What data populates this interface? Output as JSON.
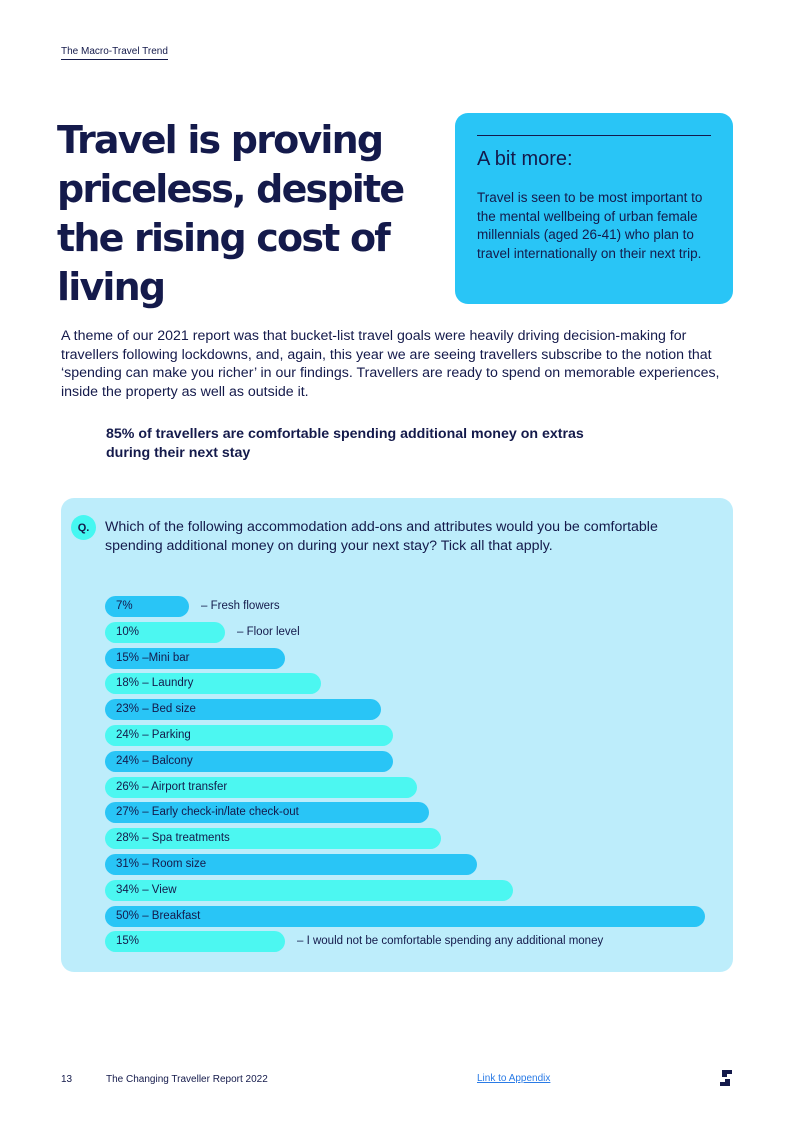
{
  "header": {
    "section_label": "The Macro-Travel Trend"
  },
  "headline": "Travel is proving priceless, despite the rising cost of living",
  "more_box": {
    "title": "A bit more:",
    "body": "Travel is seen to be most important to the mental wellbeing of urban female millennials (aged 26-41) who plan to travel internationally on their next trip."
  },
  "intro": "A theme of our 2021 report was that bucket-list travel goals were heavily driving decision-making for travellers following lockdowns, and, again, this year we are seeing travellers subscribe to the notion that ‘spending can make you richer’ in our findings. Travellers are ready to spend on memorable experiences, inside the property as well as outside it.",
  "highlight": "85% of travellers are comfortable spending additional money on extras during their next stay",
  "question": {
    "badge": "Q.",
    "text": "Which of the following accommodation add-ons and attributes would you be comfortable spending additional money on during your next stay? Tick all that apply."
  },
  "chart_data": {
    "type": "bar",
    "orientation": "horizontal",
    "unit": "%",
    "xlim": [
      0,
      50
    ],
    "colors": {
      "dark": "#29c5f6",
      "light": "#4cf7f1"
    },
    "items": [
      {
        "value": 7,
        "bar_label": "7%",
        "outside_label": "– Fresh flowers",
        "tone": "dark"
      },
      {
        "value": 10,
        "bar_label": "10%",
        "outside_label": "– Floor level",
        "tone": "light"
      },
      {
        "value": 15,
        "bar_label": "15% –Mini bar",
        "outside_label": "",
        "tone": "dark"
      },
      {
        "value": 18,
        "bar_label": "18% – Laundry",
        "outside_label": "",
        "tone": "light"
      },
      {
        "value": 23,
        "bar_label": "23% – Bed size",
        "outside_label": "",
        "tone": "dark"
      },
      {
        "value": 24,
        "bar_label": "24% – Parking",
        "outside_label": "",
        "tone": "light"
      },
      {
        "value": 24,
        "bar_label": "24% – Balcony",
        "outside_label": "",
        "tone": "dark"
      },
      {
        "value": 26,
        "bar_label": "26% – Airport transfer",
        "outside_label": "",
        "tone": "light"
      },
      {
        "value": 27,
        "bar_label": "27% – Early check-in/late check-out",
        "outside_label": "",
        "tone": "dark"
      },
      {
        "value": 28,
        "bar_label": "28% – Spa treatments",
        "outside_label": "",
        "tone": "light"
      },
      {
        "value": 31,
        "bar_label": "31% – Room size",
        "outside_label": "",
        "tone": "dark"
      },
      {
        "value": 34,
        "bar_label": "34% – View",
        "outside_label": "",
        "tone": "light"
      },
      {
        "value": 50,
        "bar_label": "50% – Breakfast",
        "outside_label": "",
        "tone": "dark"
      },
      {
        "value": 15,
        "bar_label": "15%",
        "outside_label": "– I would not be comfortable spending any additional money",
        "tone": "light"
      }
    ]
  },
  "footer": {
    "page_number": "13",
    "report_title": "The Changing Traveller Report 2022",
    "appendix_link": "Link to Appendix"
  },
  "logo_icon": "brand-logo-icon",
  "colors": {
    "navy": "#141a4b",
    "accent_blue": "#29c5f6",
    "panel": "#bdedfb",
    "aqua": "#45f7f1",
    "link": "#2a7be6"
  }
}
